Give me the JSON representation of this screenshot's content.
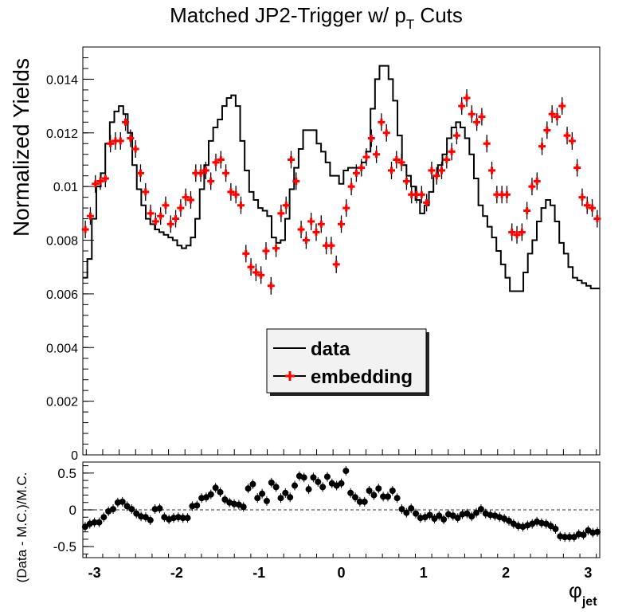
{
  "chart_data": [
    {
      "type": "line",
      "title": "Matched JP2-Trigger w/ p_T Cuts",
      "title_parts": {
        "main": "Matched JP2-Trigger w/ p",
        "sub": "T",
        "tail": " Cuts"
      },
      "ylabel": "Normalized Yields",
      "xlim": [
        -3.1416,
        3.1416
      ],
      "ylim": [
        0,
        0.0152
      ],
      "yticks": [
        0,
        0.002,
        0.004,
        0.006,
        0.008,
        0.01,
        0.012,
        0.014
      ],
      "ytick_labels": [
        "0",
        "0.002",
        "0.004",
        "0.006",
        "0.008",
        "0.01",
        "0.012",
        "0.014"
      ],
      "legend": {
        "placement": "center",
        "entries": [
          "data",
          "embedding"
        ]
      },
      "series": [
        {
          "name": "data",
          "style": "histogram-step",
          "color": "#000000",
          "values": [
            0.0066,
            0.0073,
            0.0088,
            0.01,
            0.0105,
            0.0116,
            0.0124,
            0.0128,
            0.013,
            0.0127,
            0.012,
            0.0108,
            0.0099,
            0.0093,
            0.0088,
            0.0086,
            0.0084,
            0.0083,
            0.0082,
            0.0081,
            0.008,
            0.0078,
            0.0077,
            0.0078,
            0.0081,
            0.0088,
            0.0099,
            0.0108,
            0.0117,
            0.0122,
            0.0125,
            0.013,
            0.0133,
            0.0134,
            0.013,
            0.0117,
            0.0106,
            0.0098,
            0.0095,
            0.0092,
            0.0091,
            0.0089,
            0.0081,
            0.0079,
            0.008,
            0.0088,
            0.0099,
            0.0107,
            0.0114,
            0.0121,
            0.0121,
            0.0121,
            0.0116,
            0.0113,
            0.0109,
            0.0104,
            0.0104,
            0.0101,
            0.0106,
            0.0107,
            0.0107,
            0.0107,
            0.0109,
            0.0113,
            0.0129,
            0.014,
            0.0145,
            0.0145,
            0.014,
            0.0132,
            0.0119,
            0.0108,
            0.0104,
            0.01,
            0.0095,
            0.009,
            0.0093,
            0.0098,
            0.0104,
            0.0108,
            0.0112,
            0.0118,
            0.0122,
            0.0124,
            0.0122,
            0.0118,
            0.0112,
            0.0103,
            0.0093,
            0.0089,
            0.0085,
            0.0081,
            0.0076,
            0.0071,
            0.0066,
            0.0061,
            0.0061,
            0.0061,
            0.0068,
            0.0075,
            0.008,
            0.0087,
            0.0092,
            0.0095,
            0.0093,
            0.0087,
            0.0079,
            0.0075,
            0.007,
            0.0066,
            0.0065,
            0.0064,
            0.0063,
            0.0062,
            0.0062
          ]
        },
        {
          "name": "embedding",
          "style": "markers-errorbars",
          "color": "#ff0000",
          "values": [
            0.0084,
            0.0089,
            0.0101,
            0.0102,
            0.0103,
            0.0116,
            0.0117,
            0.0117,
            0.0124,
            0.0118,
            0.0114,
            0.0105,
            0.0098,
            0.009,
            0.0087,
            0.0089,
            0.0093,
            0.0086,
            0.0088,
            0.0092,
            0.0096,
            0.0095,
            0.0105,
            0.0105,
            0.0106,
            0.0102,
            0.0109,
            0.011,
            0.0105,
            0.0098,
            0.0097,
            0.0093,
            0.0075,
            0.007,
            0.0068,
            0.0067,
            0.0076,
            0.0063,
            0.0077,
            0.009,
            0.0093,
            0.011,
            0.0102,
            0.0084,
            0.008,
            0.0087,
            0.0083,
            0.0086,
            0.0078,
            0.0078,
            0.0071,
            0.0086,
            0.0092,
            0.01,
            0.0105,
            0.0107,
            0.0111,
            0.0118,
            0.0112,
            0.0124,
            0.012,
            0.0106,
            0.011,
            0.0109,
            0.0102,
            0.0097,
            0.0097,
            0.0097,
            0.0094,
            0.0106,
            0.0104,
            0.0106,
            0.011,
            0.0113,
            0.0119,
            0.013,
            0.0133,
            0.0127,
            0.0124,
            0.0126,
            0.0116,
            0.0106,
            0.0097,
            0.0097,
            0.0097,
            0.0083,
            0.0082,
            0.0083,
            0.0091,
            0.01,
            0.0102,
            0.0115,
            0.0121,
            0.0127,
            0.0126,
            0.013,
            0.0119,
            0.0117,
            0.0107,
            0.0096,
            0.0093,
            0.0092,
            0.0088
          ]
        }
      ]
    },
    {
      "type": "scatter",
      "ylabel": "(Data - M.C.)/M.C.",
      "xlabel": "φ_jet",
      "xlabel_parts": {
        "main": "φ",
        "sub": "jet"
      },
      "xlim": [
        -3.1416,
        3.1416
      ],
      "ylim": [
        -0.65,
        0.65
      ],
      "xticks": [
        -3,
        -2,
        -1,
        0,
        1,
        2,
        3
      ],
      "xtick_labels": [
        "-3",
        "-2",
        "-1",
        "0",
        "1",
        "2",
        "3"
      ],
      "yticks": [
        -0.5,
        0,
        0.5
      ],
      "ytick_labels": [
        "-0.5",
        "0",
        "0.5"
      ],
      "reference_line": 0,
      "series": [
        {
          "color": "#000000",
          "values": [
            -0.23,
            -0.19,
            -0.17,
            -0.17,
            -0.1,
            -0.02,
            0.01,
            0.1,
            0.11,
            0.05,
            0.01,
            -0.05,
            -0.09,
            -0.1,
            -0.14,
            0.01,
            0.02,
            -0.1,
            -0.13,
            -0.11,
            -0.1,
            -0.11,
            -0.11,
            0.05,
            0.06,
            0.16,
            0.17,
            0.21,
            0.3,
            0.24,
            0.14,
            0.1,
            0.08,
            0.07,
            0.04,
            0.29,
            0.35,
            0.16,
            0.22,
            0.12,
            0.37,
            0.31,
            0.16,
            0.23,
            0.17,
            0.33,
            0.46,
            0.44,
            0.28,
            0.44,
            0.38,
            0.31,
            0.45,
            0.36,
            0.33,
            0.36,
            0.53,
            0.23,
            0.17,
            0.11,
            0.11,
            0.26,
            0.2,
            0.29,
            0.18,
            0.18,
            0.26,
            0.16,
            0.01,
            -0.04,
            0.02,
            -0.05,
            -0.11,
            -0.1,
            -0.07,
            -0.12,
            -0.08,
            -0.13,
            -0.06,
            -0.08,
            -0.11,
            -0.06,
            -0.05,
            -0.09,
            -0.04,
            0.01,
            -0.05,
            -0.07,
            -0.08,
            -0.1,
            -0.12,
            -0.15,
            -0.19,
            -0.22,
            -0.23,
            -0.21,
            -0.19,
            -0.16,
            -0.18,
            -0.19,
            -0.22,
            -0.26,
            -0.36,
            -0.37,
            -0.37,
            -0.37,
            -0.33,
            -0.34,
            -0.28,
            -0.31,
            -0.3
          ]
        }
      ]
    }
  ]
}
